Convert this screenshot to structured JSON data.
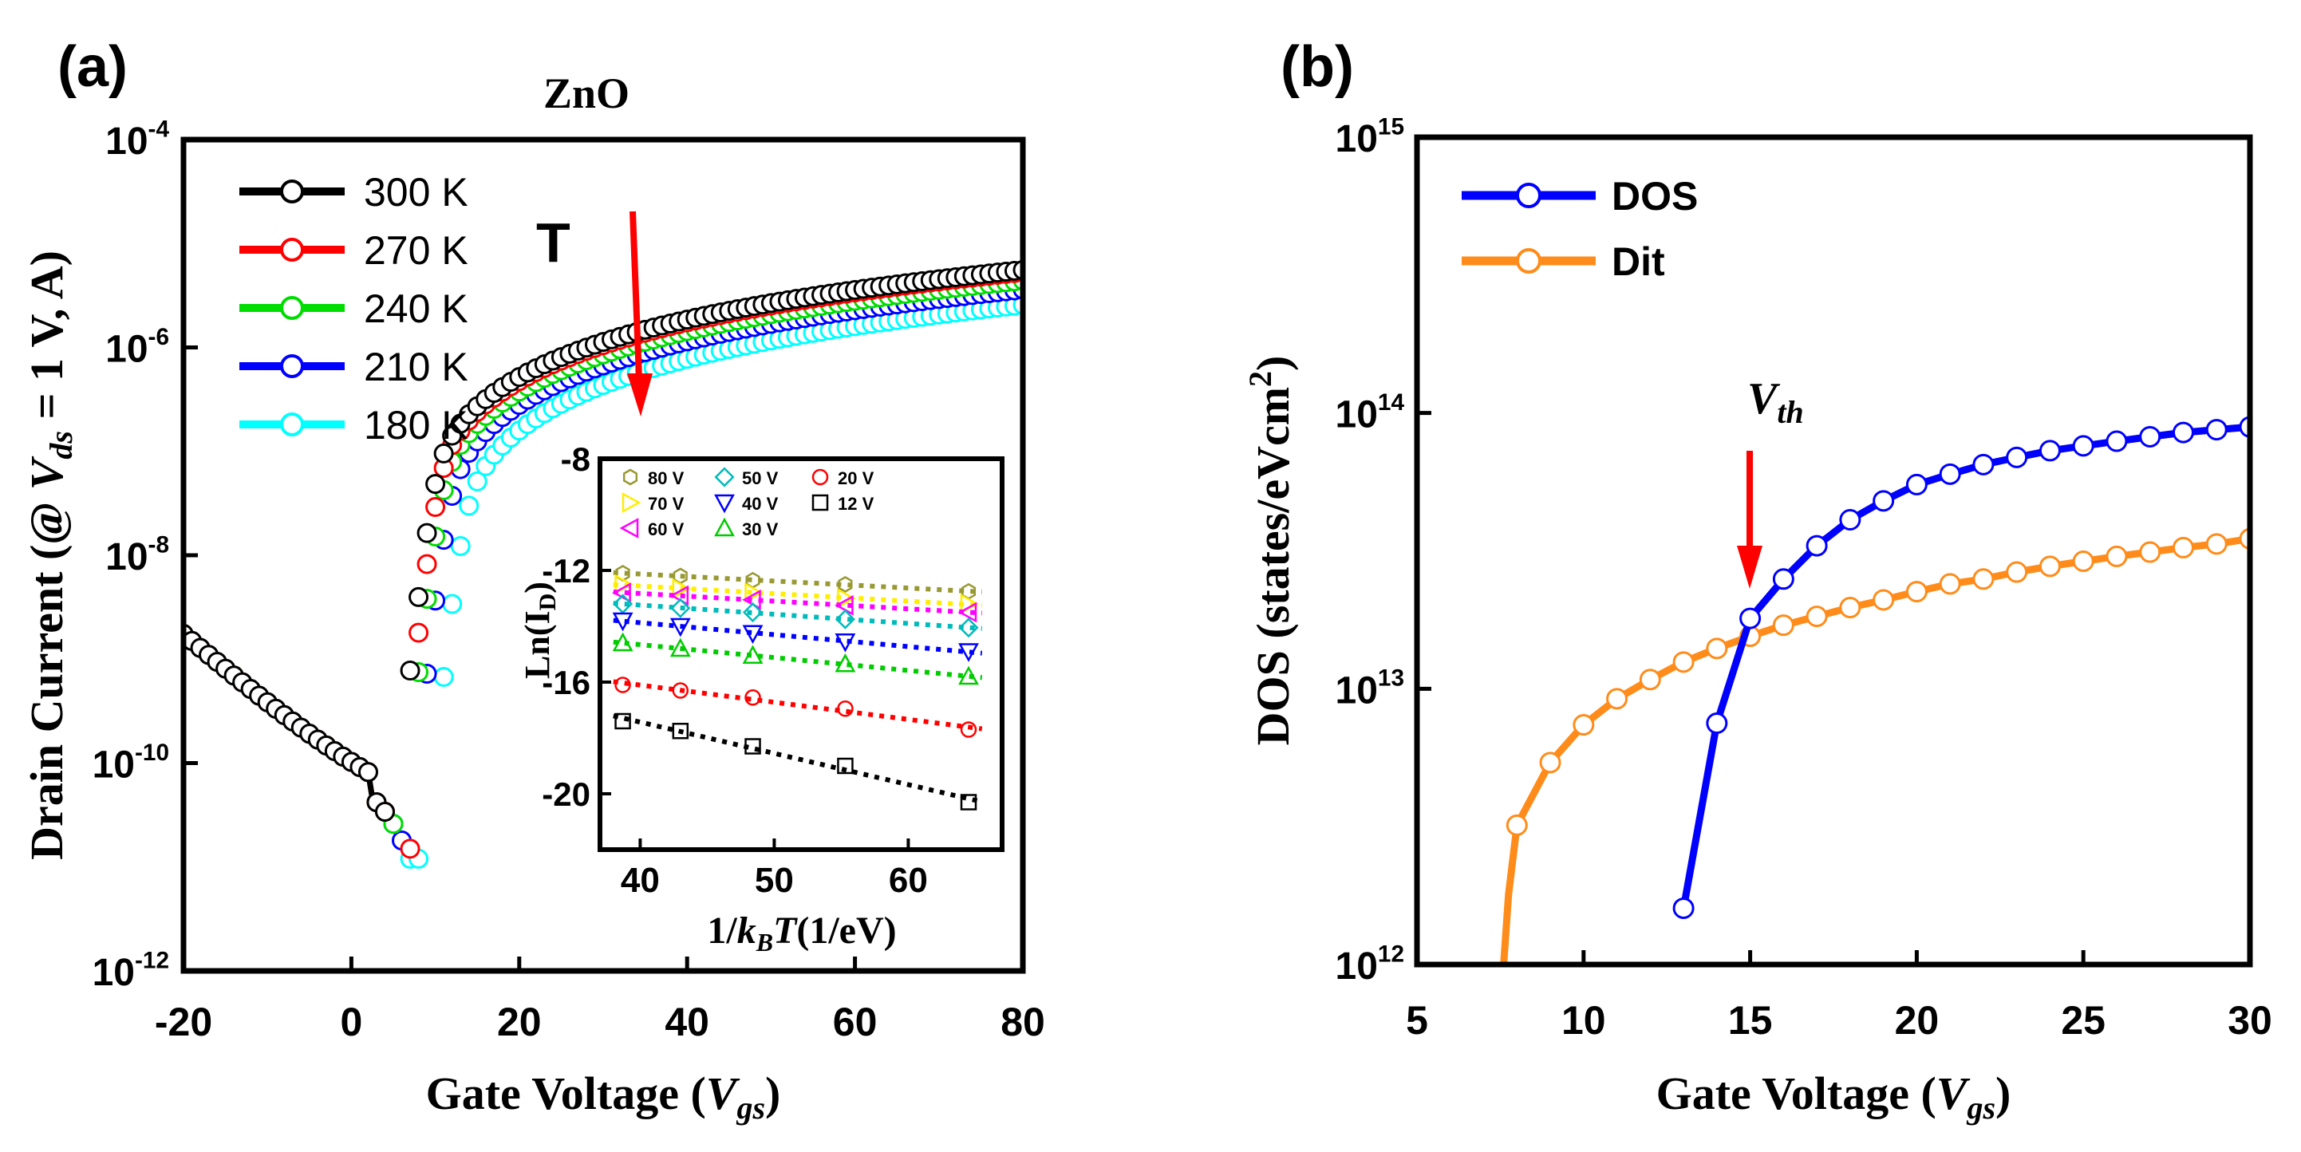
{
  "chart_data": [
    {
      "type": "line",
      "panel_label": "(a)",
      "title": "ZnO",
      "xlabel": "Gate Voltage (V_gs)",
      "ylabel": "Drain Current (@ V_ds = 1 V, A)",
      "xscale": "linear",
      "yscale": "log",
      "xlim": [
        -20,
        80
      ],
      "ylim": [
        1e-12,
        0.0001
      ],
      "x_ticks": [
        -20,
        0,
        20,
        40,
        60,
        80
      ],
      "x_tick_labels": [
        "-20",
        "0",
        "20",
        "40",
        "60",
        "80"
      ],
      "y_ticks": [
        1e-12,
        1e-10,
        1e-08,
        1e-06,
        0.0001
      ],
      "y_tick_labels": [
        {
          "base": "10",
          "exp": "-12"
        },
        {
          "base": "10",
          "exp": "-10"
        },
        {
          "base": "10",
          "exp": "-8"
        },
        {
          "base": "10",
          "exp": "-6"
        },
        {
          "base": "10",
          "exp": "-4"
        }
      ],
      "legend_position": "top-left",
      "annotation": {
        "text": "T",
        "arrow_color": "#ff0000",
        "direction": "down"
      },
      "series": [
        {
          "name": "300 K",
          "color": "#000000",
          "vth": 8.5,
          "scale": 1.0,
          "ion": 5.2e-06
        },
        {
          "name": "270 K",
          "color": "#ff0000",
          "vth": 9.0,
          "scale": 0.98,
          "ion": 5e-06
        },
        {
          "name": "240 K",
          "color": "#00dd00",
          "vth": 9.5,
          "scale": 0.82,
          "ion": 4.2e-06
        },
        {
          "name": "210 K",
          "color": "#0000ff",
          "vth": 10.5,
          "scale": 0.68,
          "ion": 3.5e-06
        },
        {
          "name": "180 K",
          "color": "#00ffff",
          "vth": 12.5,
          "scale": 0.52,
          "ion": 2.6e-06
        }
      ],
      "inset": {
        "xlabel": "1/k_B T (1/eV)",
        "ylabel": "Ln(I_D)",
        "xlim": [
          37,
          67
        ],
        "ylim": [
          -22,
          -8
        ],
        "x_ticks": [
          40,
          50,
          60
        ],
        "y_ticks": [
          -8,
          -12,
          -16,
          -20
        ],
        "x": [
          38.7,
          43.0,
          48.4,
          55.3,
          64.5
        ],
        "series": [
          {
            "name": "80 V",
            "color": "#999933",
            "marker": "hexagon",
            "values": [
              -12.1,
              -12.2,
              -12.35,
              -12.5,
              -12.75
            ]
          },
          {
            "name": "70 V",
            "color": "#ffee00",
            "marker": "tri-right",
            "values": [
              -12.5,
              -12.65,
              -12.8,
              -13.0,
              -13.2
            ]
          },
          {
            "name": "60 V",
            "color": "#ff00ff",
            "marker": "tri-left",
            "values": [
              -12.8,
              -12.9,
              -13.05,
              -13.25,
              -13.5
            ]
          },
          {
            "name": "50 V",
            "color": "#00bbbb",
            "marker": "diamond",
            "values": [
              -13.2,
              -13.35,
              -13.5,
              -13.75,
              -14.05
            ]
          },
          {
            "name": "40 V",
            "color": "#0000ff",
            "marker": "tri-down",
            "values": [
              -13.8,
              -14.0,
              -14.25,
              -14.55,
              -14.9
            ]
          },
          {
            "name": "30 V",
            "color": "#00cc00",
            "marker": "tri-up",
            "values": [
              -14.6,
              -14.8,
              -15.05,
              -15.35,
              -15.8
            ]
          },
          {
            "name": "20 V",
            "color": "#ff0000",
            "marker": "circle",
            "values": [
              -16.1,
              -16.3,
              -16.55,
              -16.95,
              -17.7
            ]
          },
          {
            "name": "12 V",
            "color": "#000000",
            "marker": "square",
            "values": [
              -17.4,
              -17.75,
              -18.3,
              -19.0,
              -20.3
            ]
          }
        ]
      }
    },
    {
      "type": "line",
      "panel_label": "(b)",
      "xlabel": "Gate Voltage (V_gs)",
      "ylabel": "DOS (states/eVcm²)",
      "xscale": "linear",
      "yscale": "log",
      "xlim": [
        5,
        30
      ],
      "ylim": [
        1000000000000.0,
        1000000000000000.0
      ],
      "x_ticks": [
        5,
        10,
        15,
        20,
        25,
        30
      ],
      "x_tick_labels": [
        "5",
        "10",
        "15",
        "20",
        "25",
        "30"
      ],
      "y_ticks": [
        1000000000000.0,
        10000000000000.0,
        100000000000000.0,
        1000000000000000.0
      ],
      "y_tick_labels": [
        {
          "base": "10",
          "exp": "12"
        },
        {
          "base": "10",
          "exp": "13"
        },
        {
          "base": "10",
          "exp": "14"
        },
        {
          "base": "10",
          "exp": "15"
        }
      ],
      "legend_position": "top-left",
      "annotation": {
        "text": "V_th",
        "x": 15,
        "arrow_color": "#ff0000",
        "direction": "down"
      },
      "series": [
        {
          "name": "DOS",
          "color": "#0000ff",
          "x": [
            13,
            14,
            15,
            16,
            17,
            18,
            19,
            20,
            21,
            22,
            23,
            24,
            25,
            26,
            27,
            28,
            29,
            30
          ],
          "values": [
            1600000000000.0,
            7500000000000.0,
            18000000000000.0,
            25000000000000.0,
            33000000000000.0,
            41000000000000.0,
            48000000000000.0,
            55000000000000.0,
            60000000000000.0,
            65000000000000.0,
            69000000000000.0,
            73000000000000.0,
            76000000000000.0,
            79000000000000.0,
            82000000000000.0,
            85000000000000.0,
            87000000000000.0,
            89000000000000.0
          ]
        },
        {
          "name": "Dit",
          "color": "#ff8c1a",
          "x": [
            8,
            9,
            10,
            11,
            12,
            13,
            14,
            15,
            16,
            17,
            18,
            19,
            20,
            21,
            22,
            23,
            24,
            25,
            26,
            27,
            28,
            29,
            30
          ],
          "values": [
            3200000000000.0,
            5400000000000.0,
            7400000000000.0,
            9200000000000.0,
            10800000000000.0,
            12500000000000.0,
            14000000000000.0,
            15500000000000.0,
            17000000000000.0,
            18300000000000.0,
            19700000000000.0,
            21000000000000.0,
            22500000000000.0,
            24000000000000.0,
            25000000000000.0,
            26500000000000.0,
            27800000000000.0,
            29000000000000.0,
            30200000000000.0,
            31300000000000.0,
            32500000000000.0,
            33500000000000.0,
            35000000000000.0
          ]
        }
      ]
    }
  ]
}
